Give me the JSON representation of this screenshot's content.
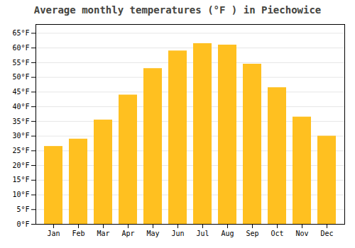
{
  "chart_data": {
    "type": "bar",
    "title": "Average monthly temperatures (°F ) in Piechowice",
    "categories": [
      "Jan",
      "Feb",
      "Mar",
      "Apr",
      "May",
      "Jun",
      "Jul",
      "Aug",
      "Sep",
      "Oct",
      "Nov",
      "Dec"
    ],
    "values": [
      26.5,
      29.0,
      35.5,
      44.0,
      53.0,
      59.0,
      61.5,
      61.0,
      54.5,
      46.5,
      36.5,
      30.0
    ],
    "color": "#FFC020",
    "ylim": [
      0,
      68
    ],
    "yticks": [
      {
        "value": 0,
        "label": "0°F"
      },
      {
        "value": 5,
        "label": "5°F"
      },
      {
        "value": 10,
        "label": "10°F"
      },
      {
        "value": 15,
        "label": "15°F"
      },
      {
        "value": 20,
        "label": "20°F"
      },
      {
        "value": 25,
        "label": "25°F"
      },
      {
        "value": 30,
        "label": "30°F"
      },
      {
        "value": 35,
        "label": "35°F"
      },
      {
        "value": 40,
        "label": "40°F"
      },
      {
        "value": 45,
        "label": "45°F"
      },
      {
        "value": 50,
        "label": "50°F"
      },
      {
        "value": 55,
        "label": "55°F"
      },
      {
        "value": 60,
        "label": "60°F"
      },
      {
        "value": 65,
        "label": "65°F"
      }
    ],
    "grid": true
  }
}
